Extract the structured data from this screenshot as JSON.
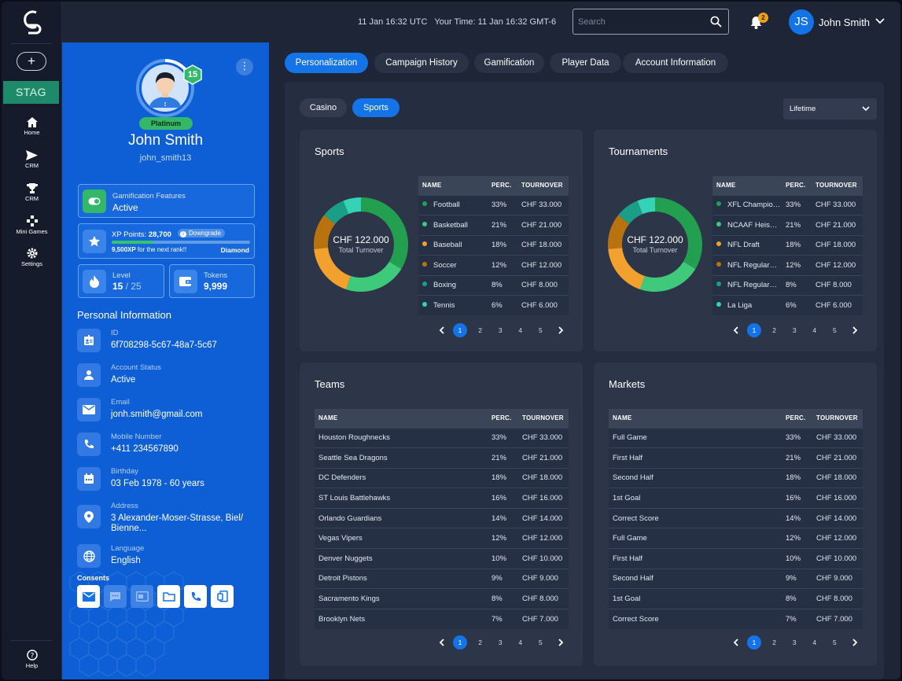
{
  "nav": {
    "add_label": "+",
    "env_badge": "STAG",
    "items": [
      {
        "label": "Home",
        "icon": "home-icon"
      },
      {
        "label": "CRM",
        "icon": "send-icon"
      },
      {
        "label": "CRM",
        "icon": "trophy-icon"
      },
      {
        "label": "Mini Games",
        "icon": "gamepad-icon"
      },
      {
        "label": "Settings",
        "icon": "gear-icon"
      }
    ],
    "help_label": "Help"
  },
  "header": {
    "time_text": "11 Jan 16:32 UTC   Your Time: 11 Jan 16:32 GMT-6",
    "search_placeholder": "Search",
    "notifications_count": "2",
    "user_initials": "JS",
    "user_name": "John Smith"
  },
  "profile": {
    "level_badge": "15",
    "tier": "Platinum",
    "name": "John Smith",
    "username": "john_smith13",
    "gamification": {
      "label": "Gamification Features",
      "value": "Active"
    },
    "xp": {
      "label": "XP Points:",
      "points": "28,700",
      "downgrade": "Downgrade",
      "next_prefix": "9,500XP",
      "next_suffix": " for the next rank!!",
      "rank": "Diamond",
      "progress": 0.3
    },
    "level": {
      "label": "Level",
      "value": "15",
      "max": " / 25"
    },
    "tokens": {
      "label": "Tokens",
      "value": "9,999"
    },
    "personal_title": "Personal Information",
    "fields": [
      {
        "label": "ID",
        "value": "6f708298-5c67-48a7-5c67",
        "icon": "id-card-icon"
      },
      {
        "label": "Account Status",
        "value": "Active",
        "icon": "user-icon"
      },
      {
        "label": "Email",
        "value": "jonh.smith@gmail.com",
        "icon": "mail-icon"
      },
      {
        "label": "Mobile Number",
        "value": "+411 234567890",
        "icon": "phone-icon"
      },
      {
        "label": "Birthday",
        "value": "03 Feb 1978 - 60 years",
        "icon": "calendar-icon"
      },
      {
        "label": "Address",
        "value": "3 Alexander-Moser-Strasse, Biel/ Bienne...",
        "icon": "location-pin-icon"
      },
      {
        "label": "Language",
        "value": "English",
        "icon": "globe-icon"
      }
    ],
    "consents_title": "Consents"
  },
  "tabs": [
    "Personalization",
    "Campaign History",
    "Gamification",
    "Player Data",
    "Account Information"
  ],
  "subtabs": [
    "Casino",
    "Sports"
  ],
  "period": "Lifetime",
  "table_headers": {
    "name": "NAME",
    "perc": "PERC.",
    "turnover": "TOURNOVER"
  },
  "pagination": [
    "1",
    "2",
    "3",
    "4",
    "5"
  ],
  "colors": {
    "green": "#23a04f",
    "lightgreen": "#3fc97a",
    "orange": "#f2a12e",
    "brown": "#b9730e",
    "teal": "#1b9e88",
    "aqua": "#34d3b8"
  },
  "sports": {
    "title": "Sports",
    "total_value": "CHF 122.000",
    "total_label": "Total Turnover",
    "rows": [
      {
        "name": "Football",
        "perc": "33%",
        "turnover": "CHF 33.000",
        "color": "#23a04f"
      },
      {
        "name": "Basketball",
        "perc": "21%",
        "turnover": "CHF 21.000",
        "color": "#3fc97a"
      },
      {
        "name": "Baseball",
        "perc": "18%",
        "turnover": "CHF 18.000",
        "color": "#f2a12e"
      },
      {
        "name": "Soccer",
        "perc": "12%",
        "turnover": "CHF 12.000",
        "color": "#b9730e"
      },
      {
        "name": "Boxing",
        "perc": "8%",
        "turnover": "CHF 8.000",
        "color": "#1b9e88"
      },
      {
        "name": "Tennis",
        "perc": "6%",
        "turnover": "CHF 6.000",
        "color": "#34d3b8"
      }
    ]
  },
  "tournaments": {
    "title": "Tournaments",
    "total_value": "CHF 122.000",
    "total_label": "Total Turnover",
    "rows": [
      {
        "name": "XFL Champio…",
        "perc": "33%",
        "turnover": "CHF 33.000",
        "color": "#23a04f"
      },
      {
        "name": "NCAAF Heis…",
        "perc": "21%",
        "turnover": "CHF 21.000",
        "color": "#3fc97a"
      },
      {
        "name": "NFL Draft",
        "perc": "18%",
        "turnover": "CHF 18.000",
        "color": "#f2a12e"
      },
      {
        "name": "NFL Regular…",
        "perc": "12%",
        "turnover": "CHF 12.000",
        "color": "#b9730e"
      },
      {
        "name": "NFL Regular…",
        "perc": "8%",
        "turnover": "CHF 8.000",
        "color": "#1b9e88"
      },
      {
        "name": "La Liga",
        "perc": "6%",
        "turnover": "CHF 6.000",
        "color": "#34d3b8"
      }
    ]
  },
  "teams": {
    "title": "Teams",
    "rows": [
      {
        "name": "Houston Roughnecks",
        "perc": "33%",
        "turnover": "CHF 33.000"
      },
      {
        "name": "Seattle Sea Dragons",
        "perc": "21%",
        "turnover": "CHF 21.000"
      },
      {
        "name": "DC Defenders",
        "perc": "18%",
        "turnover": "CHF 18.000"
      },
      {
        "name": "ST Louis Battlehawks",
        "perc": "16%",
        "turnover": "CHF 16.000"
      },
      {
        "name": "Orlando Guardians",
        "perc": "14%",
        "turnover": "CHF 14.000"
      },
      {
        "name": "Vegas Vipers",
        "perc": "12%",
        "turnover": "CHF 12.000"
      },
      {
        "name": "Denver Nuggets",
        "perc": "10%",
        "turnover": "CHF 10.000"
      },
      {
        "name": "Detroit Pistons",
        "perc": "9%",
        "turnover": "CHF 9.000"
      },
      {
        "name": "Sacramento Kings",
        "perc": "8%",
        "turnover": "CHF 8.000"
      },
      {
        "name": "Brooklyn Nets",
        "perc": "7%",
        "turnover": "CHF 7.000"
      }
    ]
  },
  "markets": {
    "title": "Markets",
    "rows": [
      {
        "name": "Full Game",
        "perc": "33%",
        "turnover": "CHF 33.000"
      },
      {
        "name": "First Half",
        "perc": "21%",
        "turnover": "CHF 21.000"
      },
      {
        "name": "Second Half",
        "perc": "18%",
        "turnover": "CHF 18.000"
      },
      {
        "name": "1st Goal",
        "perc": "16%",
        "turnover": "CHF 16.000"
      },
      {
        "name": "Correct Score",
        "perc": "14%",
        "turnover": "CHF 14.000"
      },
      {
        "name": "Full Game",
        "perc": "12%",
        "turnover": "CHF 12.000"
      },
      {
        "name": "First Half",
        "perc": "10%",
        "turnover": "CHF 10.000"
      },
      {
        "name": "Second Half",
        "perc": "9%",
        "turnover": "CHF 9.000"
      },
      {
        "name": "1st Goal",
        "perc": "8%",
        "turnover": "CHF 8.000"
      },
      {
        "name": "Correct Score",
        "perc": "7%",
        "turnover": "CHF 7.000"
      }
    ]
  }
}
